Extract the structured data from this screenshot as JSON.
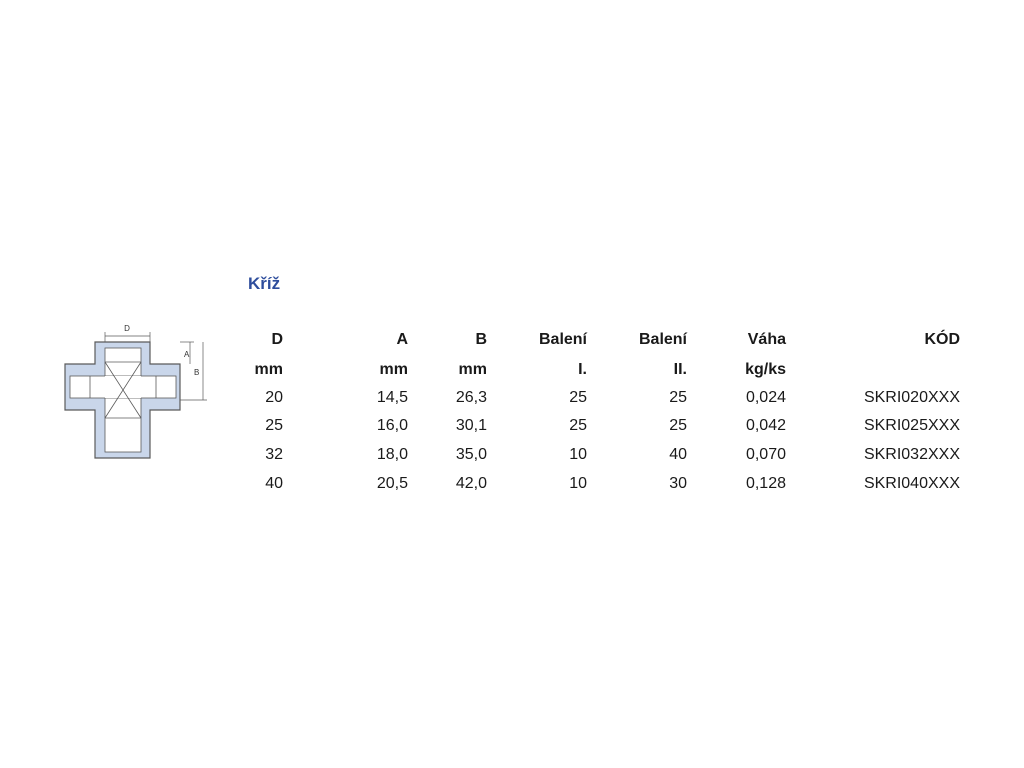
{
  "title": "Kříž",
  "drawing": {
    "fill_color": "#c9d6ea",
    "line_color": "#5a5a5a",
    "dimension_labels": {
      "d": "D",
      "a": "A",
      "b": "B"
    }
  },
  "table": {
    "headers": [
      [
        "D",
        "mm"
      ],
      [
        "A",
        "mm"
      ],
      [
        "B",
        "mm"
      ],
      [
        "Balení",
        "I."
      ],
      [
        "Balení",
        "II."
      ],
      [
        "Váha",
        "kg/ks"
      ],
      [
        "KÓD",
        ""
      ]
    ],
    "rows": [
      [
        "20",
        "14,5",
        "26,3",
        "25",
        "25",
        "0,024",
        "SKRI020XXX"
      ],
      [
        "25",
        "16,0",
        "30,1",
        "25",
        "25",
        "0,042",
        "SKRI025XXX"
      ],
      [
        "32",
        "18,0",
        "35,0",
        "10",
        "40",
        "0,070",
        "SKRI032XXX"
      ],
      [
        "40",
        "20,5",
        "42,0",
        "10",
        "30",
        "0,128",
        "SKRI040XXX"
      ]
    ]
  }
}
